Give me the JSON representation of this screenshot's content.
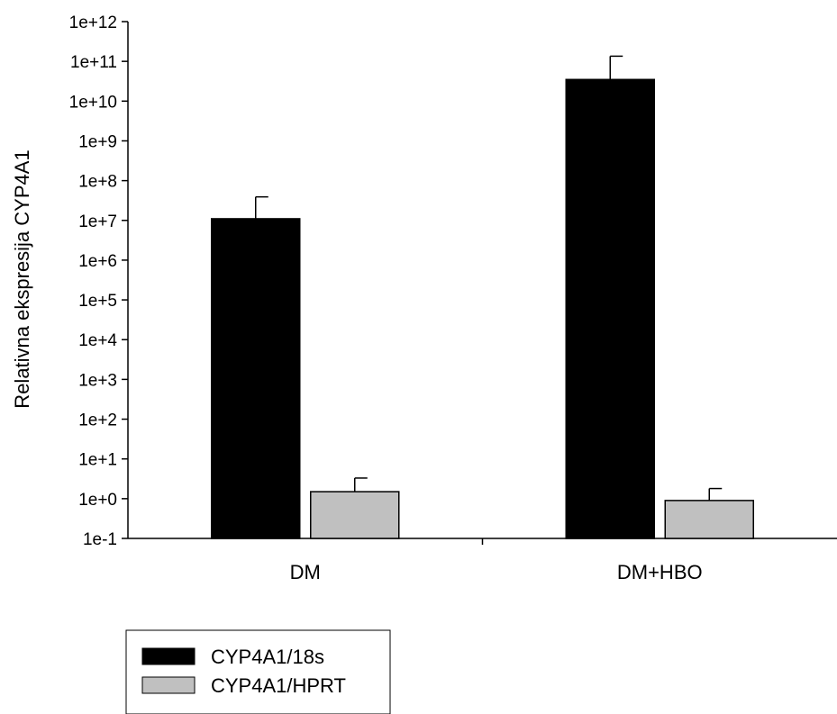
{
  "chart_data": {
    "type": "bar",
    "scale": "log",
    "ylabel": "Relativna ekspresija CYP4A1",
    "xlabel": "",
    "categories": [
      "DM",
      "DM+HBO"
    ],
    "ylim": [
      0.1,
      1000000000000
    ],
    "yticks": [
      "1e-1",
      "1e+0",
      "1e+1",
      "1e+2",
      "1e+3",
      "1e+4",
      "1e+5",
      "1e+6",
      "1e+7",
      "1e+8",
      "1e+9",
      "1e+10",
      "1e+11",
      "1e+12"
    ],
    "series": [
      {
        "name": "CYP4A1/18s",
        "color": "#000000",
        "values": [
          11000000,
          35000000000
        ],
        "error_upper": [
          39000000,
          135000000000
        ]
      },
      {
        "name": "CYP4A1/HPRT",
        "color": "#c0c0c0",
        "values": [
          1.5,
          0.9
        ],
        "error_upper": [
          3.3,
          1.8
        ]
      }
    ],
    "grid": false,
    "legend_position": "bottom-left"
  }
}
